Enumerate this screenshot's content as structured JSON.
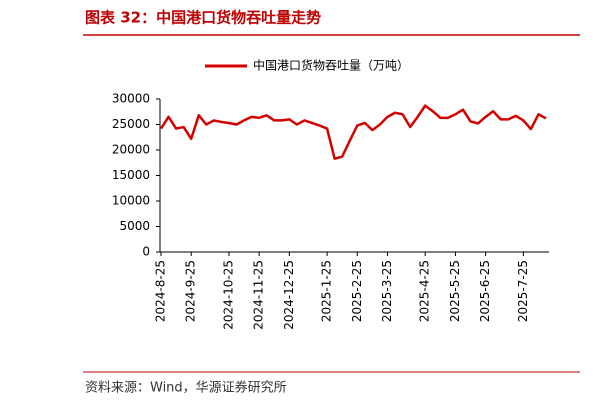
{
  "header": {
    "title": "图表 32：中国港口货物吞吐量走势"
  },
  "chart_data": {
    "type": "line",
    "categories": [
      "2024-8-25",
      null,
      null,
      null,
      "2024-9-25",
      null,
      null,
      null,
      null,
      "2024-10-25",
      null,
      null,
      null,
      "2024-11-25",
      null,
      null,
      null,
      "2024-12-25",
      null,
      null,
      null,
      null,
      "2025-1-25",
      null,
      null,
      null,
      "2025-2-25",
      null,
      null,
      null,
      "2025-3-25",
      null,
      null,
      null,
      null,
      "2025-4-25",
      null,
      null,
      null,
      "2025-5-25",
      null,
      null,
      null,
      "2025-6-25",
      null,
      null,
      null,
      null,
      "2025-7-25",
      null,
      null,
      null
    ],
    "series": [
      {
        "name": "中国港口货物吞吐量（万吨）",
        "color": "#d40000",
        "values": [
          24200,
          26500,
          24200,
          24500,
          22200,
          26800,
          25000,
          25800,
          25500,
          25300,
          25000,
          25800,
          26500,
          26300,
          26800,
          25800,
          25800,
          26000,
          25000,
          25800,
          25300,
          24800,
          24200,
          18300,
          18700,
          21800,
          24800,
          25300,
          23900,
          25000,
          26500,
          27300,
          27000,
          24500,
          26500,
          28700,
          27600,
          26300,
          26300,
          27000,
          27900,
          25600,
          25200,
          26500,
          27600,
          26000,
          26000,
          26700,
          25800,
          24100,
          27000,
          26200
        ]
      }
    ],
    "ylim": [
      0,
      30000
    ],
    "yticks": [
      0,
      5000,
      10000,
      15000,
      20000,
      25000,
      30000
    ],
    "legend": "top",
    "grid": false
  },
  "footer": {
    "source": "资料来源：Wind，华源证券研究所"
  }
}
